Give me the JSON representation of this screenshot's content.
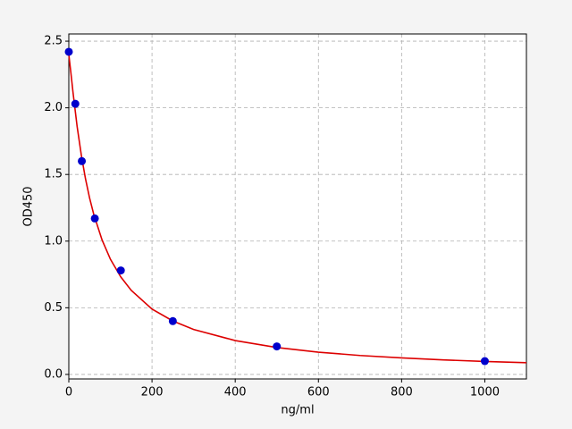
{
  "chart_data": {
    "type": "scatter",
    "x_label": "ng/ml",
    "y_label": "OD450",
    "x": [
      0,
      15.625,
      31.25,
      62.5,
      125,
      250,
      500,
      1000
    ],
    "values": [
      2.42,
      2.03,
      1.6,
      1.17,
      0.78,
      0.4,
      0.21,
      0.1
    ],
    "color": "#0000cc",
    "fit": {
      "color": "#dd0000",
      "x": [
        0,
        5,
        10,
        20,
        30,
        40,
        50,
        60,
        80,
        100,
        125,
        150,
        200,
        250,
        300,
        400,
        500,
        600,
        700,
        800,
        900,
        1000,
        1100
      ],
      "values": [
        2.4,
        2.262,
        2.118,
        1.859,
        1.646,
        1.469,
        1.322,
        1.2,
        1.008,
        0.864,
        0.731,
        0.631,
        0.49,
        0.401,
        0.337,
        0.254,
        0.202,
        0.167,
        0.142,
        0.124,
        0.109,
        0.097,
        0.088
      ]
    },
    "xlim": [
      0,
      1100
    ],
    "ylim": [
      -0.034,
      2.554
    ],
    "xticks": [
      0,
      200,
      400,
      600,
      800,
      1000
    ],
    "yticks": [
      {
        "value": 0,
        "label": "0.0"
      },
      0.5,
      {
        "value": 1,
        "label": "1.0"
      },
      1.5,
      {
        "value": 2,
        "label": "2.0"
      },
      2.5
    ],
    "grid": true
  }
}
